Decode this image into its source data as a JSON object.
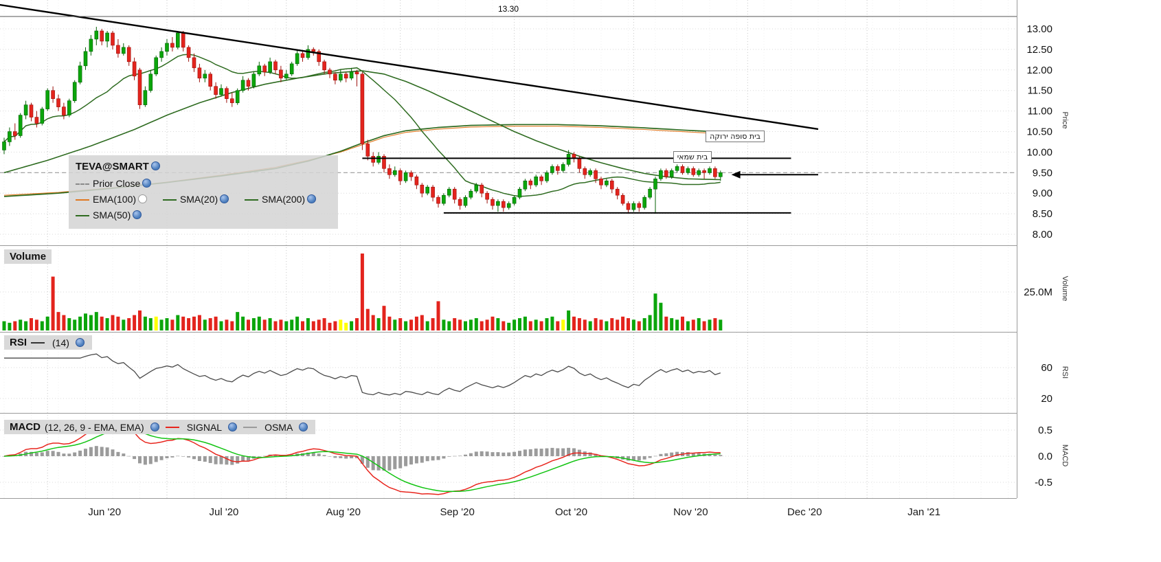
{
  "legend": {
    "symbol": "TEVA@SMART",
    "items": [
      {
        "label": "Prior Close",
        "swatch": "dashed-gray"
      },
      {
        "label": "EMA(100)",
        "swatch": "orange"
      },
      {
        "label": "SMA(20)",
        "swatch": "green"
      },
      {
        "label": "SMA(200)",
        "swatch": "green"
      },
      {
        "label": "SMA(50)",
        "swatch": "green"
      }
    ]
  },
  "panels": {
    "price": {
      "ticks": [
        "13.00",
        "12.50",
        "12.00",
        "11.50",
        "11.00",
        "10.50",
        "10.00",
        "9.50",
        "9.00",
        "8.50",
        "8.00"
      ],
      "axis_title": "Price"
    },
    "volume": {
      "title": "Volume",
      "ticks": [
        "25.0M"
      ],
      "axis_title": "Volume"
    },
    "rsi": {
      "title": "RSI",
      "param": "(14)",
      "ticks": [
        "60",
        "20"
      ],
      "axis_title": "RSI"
    },
    "macd": {
      "title": "MACD",
      "param": "(12, 26, 9 - EMA, EMA)",
      "signal_label": "SIGNAL",
      "osma_label": "OSMA",
      "ticks": [
        "0.5",
        "0.0",
        "-0.5"
      ],
      "axis_title": "MACD"
    }
  },
  "x_axis": {
    "months": [
      {
        "label": "Jun '20",
        "start": 8
      },
      {
        "label": "Jul '20",
        "start": 30
      },
      {
        "label": "Aug '20",
        "start": 52
      },
      {
        "label": "Sep '20",
        "start": 73
      },
      {
        "label": "Oct '20",
        "start": 94
      },
      {
        "label": "Nov '20",
        "start": 116
      },
      {
        "label": "Dec '20",
        "start": 137
      },
      {
        "label": "Jan '21",
        "start": 159
      }
    ]
  },
  "annotations": {
    "top_line": {
      "price": 13.3,
      "label": "13.30"
    },
    "prior_close": 9.5,
    "resistance": {
      "price": 9.85,
      "from_index": 66,
      "to_index": 145
    },
    "support": {
      "price": 8.52,
      "from_index": 81,
      "to_index": 145
    },
    "trendline": {
      "points": [
        [
          -20,
          13.97
        ],
        [
          150,
          10.56
        ]
      ]
    },
    "arrow": {
      "price": 9.45,
      "head_index": 134,
      "tail_index": 150
    },
    "labels": [
      {
        "text": "בית סופה ירוקה",
        "index": 129,
        "price": 10.38
      },
      {
        "text": "בית שמאי",
        "index": 123,
        "price": 9.87
      }
    ]
  },
  "chart_data": {
    "type": "candlestick",
    "symbol": "TEVA@SMART",
    "timeframe": "daily",
    "price_range": [
      8.0,
      13.0
    ],
    "candles": [
      [
        10.05,
        10.35,
        9.95,
        10.25
      ],
      [
        10.25,
        10.6,
        10.15,
        10.5
      ],
      [
        10.5,
        10.7,
        10.3,
        10.4
      ],
      [
        10.4,
        10.95,
        10.35,
        10.9
      ],
      [
        10.9,
        11.25,
        10.8,
        11.15
      ],
      [
        11.15,
        11.2,
        10.75,
        10.85
      ],
      [
        10.85,
        11.0,
        10.6,
        10.7
      ],
      [
        10.7,
        11.1,
        10.65,
        11.05
      ],
      [
        11.05,
        11.55,
        11.0,
        11.5
      ],
      [
        11.5,
        11.6,
        11.2,
        11.3
      ],
      [
        11.3,
        11.4,
        11.0,
        11.1
      ],
      [
        11.1,
        11.2,
        10.8,
        10.9
      ],
      [
        10.9,
        11.3,
        10.85,
        11.25
      ],
      [
        11.25,
        11.75,
        11.2,
        11.7
      ],
      [
        11.7,
        12.2,
        11.65,
        12.1
      ],
      [
        12.1,
        12.55,
        12.0,
        12.45
      ],
      [
        12.45,
        12.85,
        12.35,
        12.75
      ],
      [
        12.75,
        13.05,
        12.6,
        12.95
      ],
      [
        12.95,
        13.0,
        12.6,
        12.7
      ],
      [
        12.7,
        12.95,
        12.55,
        12.9
      ],
      [
        12.9,
        12.95,
        12.5,
        12.6
      ],
      [
        12.6,
        12.75,
        12.3,
        12.4
      ],
      [
        12.4,
        12.65,
        12.35,
        12.55
      ],
      [
        12.55,
        12.6,
        12.1,
        12.2
      ],
      [
        12.2,
        12.3,
        11.75,
        11.85
      ],
      [
        12.0,
        12.05,
        11.05,
        11.15
      ],
      [
        11.15,
        11.6,
        11.1,
        11.5
      ],
      [
        11.5,
        12.0,
        11.45,
        11.9
      ],
      [
        11.9,
        12.35,
        11.85,
        12.3
      ],
      [
        12.3,
        12.55,
        12.2,
        12.45
      ],
      [
        12.45,
        12.75,
        12.35,
        12.65
      ],
      [
        12.65,
        12.8,
        12.45,
        12.55
      ],
      [
        12.55,
        12.95,
        12.5,
        12.9
      ],
      [
        12.9,
        12.95,
        12.45,
        12.55
      ],
      [
        12.55,
        12.6,
        12.2,
        12.3
      ],
      [
        12.3,
        12.4,
        11.95,
        12.05
      ],
      [
        12.05,
        12.15,
        11.7,
        11.8
      ],
      [
        11.8,
        12.0,
        11.7,
        11.9
      ],
      [
        11.9,
        11.95,
        11.5,
        11.6
      ],
      [
        11.6,
        11.7,
        11.3,
        11.4
      ],
      [
        11.4,
        11.65,
        11.35,
        11.55
      ],
      [
        11.55,
        11.6,
        11.2,
        11.3
      ],
      [
        11.3,
        11.45,
        11.1,
        11.2
      ],
      [
        11.2,
        11.55,
        11.15,
        11.5
      ],
      [
        11.5,
        11.85,
        11.45,
        11.75
      ],
      [
        11.75,
        11.8,
        11.5,
        11.6
      ],
      [
        11.6,
        11.95,
        11.55,
        11.9
      ],
      [
        11.9,
        12.2,
        11.85,
        12.1
      ],
      [
        12.1,
        12.15,
        11.85,
        11.95
      ],
      [
        11.95,
        12.3,
        11.9,
        12.2
      ],
      [
        12.2,
        12.25,
        11.9,
        12.0
      ],
      [
        12.0,
        12.1,
        11.7,
        11.8
      ],
      [
        11.8,
        12.0,
        11.75,
        11.9
      ],
      [
        11.9,
        12.2,
        11.85,
        12.15
      ],
      [
        12.15,
        12.5,
        12.1,
        12.4
      ],
      [
        12.4,
        12.45,
        12.2,
        12.3
      ],
      [
        12.3,
        12.6,
        12.25,
        12.5
      ],
      [
        12.5,
        12.55,
        12.35,
        12.45
      ],
      [
        12.45,
        12.5,
        12.1,
        12.2
      ],
      [
        12.2,
        12.25,
        11.9,
        12.0
      ],
      [
        12.0,
        12.05,
        11.8,
        11.9
      ],
      [
        11.9,
        11.95,
        11.65,
        11.75
      ],
      [
        11.75,
        12.0,
        11.7,
        11.9
      ],
      [
        11.9,
        11.95,
        11.7,
        11.8
      ],
      [
        11.8,
        12.05,
        11.75,
        11.95
      ],
      [
        11.95,
        12.0,
        11.6,
        11.9
      ],
      [
        11.9,
        11.95,
        10.05,
        10.2
      ],
      [
        10.2,
        10.3,
        9.8,
        9.9
      ],
      [
        9.9,
        10.0,
        9.65,
        9.75
      ],
      [
        9.75,
        10.0,
        9.7,
        9.9
      ],
      [
        9.9,
        9.95,
        9.5,
        9.6
      ],
      [
        9.6,
        9.7,
        9.35,
        9.45
      ],
      [
        9.45,
        9.65,
        9.4,
        9.55
      ],
      [
        9.55,
        9.6,
        9.2,
        9.3
      ],
      [
        9.3,
        9.55,
        9.25,
        9.5
      ],
      [
        9.5,
        9.55,
        9.3,
        9.4
      ],
      [
        9.4,
        9.45,
        9.1,
        9.2
      ],
      [
        9.2,
        9.25,
        8.9,
        9.0
      ],
      [
        9.0,
        9.2,
        8.95,
        9.15
      ],
      [
        9.15,
        9.2,
        8.8,
        8.9
      ],
      [
        8.9,
        8.95,
        8.65,
        8.75
      ],
      [
        8.75,
        9.0,
        8.7,
        8.95
      ],
      [
        8.95,
        9.15,
        8.9,
        9.1
      ],
      [
        9.1,
        9.15,
        8.75,
        8.85
      ],
      [
        8.85,
        8.9,
        8.6,
        8.7
      ],
      [
        8.7,
        8.95,
        8.65,
        8.9
      ],
      [
        8.9,
        9.1,
        8.85,
        9.05
      ],
      [
        9.05,
        9.25,
        9.0,
        9.2
      ],
      [
        9.2,
        9.25,
        8.9,
        9.0
      ],
      [
        9.0,
        9.05,
        8.75,
        8.85
      ],
      [
        8.85,
        8.9,
        8.6,
        8.7
      ],
      [
        8.7,
        8.85,
        8.55,
        8.8
      ],
      [
        8.8,
        8.85,
        8.55,
        8.65
      ],
      [
        8.65,
        8.8,
        8.6,
        8.75
      ],
      [
        8.75,
        8.95,
        8.7,
        8.9
      ],
      [
        8.9,
        9.15,
        8.85,
        9.1
      ],
      [
        9.1,
        9.35,
        9.05,
        9.3
      ],
      [
        9.3,
        9.35,
        9.1,
        9.2
      ],
      [
        9.2,
        9.45,
        9.15,
        9.4
      ],
      [
        9.4,
        9.45,
        9.2,
        9.3
      ],
      [
        9.3,
        9.55,
        9.25,
        9.5
      ],
      [
        9.5,
        9.7,
        9.45,
        9.65
      ],
      [
        9.65,
        9.7,
        9.45,
        9.55
      ],
      [
        9.55,
        9.75,
        9.5,
        9.7
      ],
      [
        9.7,
        10.05,
        9.65,
        9.95
      ],
      [
        9.95,
        10.0,
        9.75,
        9.85
      ],
      [
        9.85,
        9.9,
        9.5,
        9.6
      ],
      [
        9.6,
        9.65,
        9.35,
        9.45
      ],
      [
        9.45,
        9.6,
        9.4,
        9.55
      ],
      [
        9.55,
        9.6,
        9.25,
        9.35
      ],
      [
        9.35,
        9.4,
        9.1,
        9.2
      ],
      [
        9.2,
        9.35,
        9.15,
        9.3
      ],
      [
        9.3,
        9.35,
        9.0,
        9.1
      ],
      [
        9.1,
        9.15,
        8.85,
        8.95
      ],
      [
        8.95,
        9.0,
        8.7,
        8.75
      ],
      [
        8.75,
        8.8,
        8.5,
        8.6
      ],
      [
        8.6,
        8.8,
        8.55,
        8.75
      ],
      [
        8.75,
        8.8,
        8.55,
        8.65
      ],
      [
        8.65,
        8.95,
        8.6,
        8.9
      ],
      [
        8.9,
        9.15,
        8.85,
        9.1
      ],
      [
        9.1,
        9.4,
        8.5,
        9.35
      ],
      [
        9.35,
        9.6,
        9.3,
        9.55
      ],
      [
        9.55,
        9.6,
        9.35,
        9.4
      ],
      [
        9.4,
        9.6,
        9.35,
        9.55
      ],
      [
        9.55,
        9.7,
        9.5,
        9.65
      ],
      [
        9.65,
        9.7,
        9.45,
        9.5
      ],
      [
        9.5,
        9.65,
        9.45,
        9.6
      ],
      [
        9.6,
        9.65,
        9.4,
        9.45
      ],
      [
        9.45,
        9.6,
        9.4,
        9.55
      ],
      [
        9.55,
        9.6,
        9.35,
        9.5
      ],
      [
        9.5,
        9.65,
        9.45,
        9.6
      ],
      [
        9.6,
        9.65,
        9.35,
        9.4
      ],
      [
        9.4,
        9.55,
        9.3,
        9.5
      ]
    ],
    "volumes": [
      6,
      5,
      6,
      7,
      6,
      8,
      7,
      6,
      9,
      35,
      12,
      10,
      8,
      7,
      9,
      11,
      10,
      12,
      9,
      8,
      10,
      9,
      7,
      8,
      10,
      13,
      9,
      8,
      9,
      7,
      8,
      7,
      10,
      9,
      8,
      9,
      10,
      7,
      8,
      9,
      6,
      7,
      6,
      12,
      9,
      7,
      8,
      9,
      7,
      8,
      6,
      7,
      6,
      7,
      9,
      6,
      8,
      6,
      7,
      8,
      5,
      6,
      7,
      5,
      6,
      8,
      50,
      14,
      10,
      8,
      16,
      9,
      7,
      8,
      6,
      7,
      9,
      10,
      6,
      8,
      19,
      7,
      6,
      8,
      7,
      6,
      7,
      8,
      6,
      7,
      9,
      8,
      6,
      5,
      7,
      8,
      9,
      6,
      7,
      6,
      8,
      9,
      6,
      7,
      13,
      9,
      8,
      7,
      6,
      8,
      7,
      6,
      8,
      7,
      9,
      8,
      7,
      6,
      8,
      10,
      24,
      18,
      9,
      8,
      7,
      9,
      6,
      7,
      8,
      6,
      7,
      8,
      7
    ],
    "volume_unit": "M",
    "volume_yellow_indices": [
      28,
      62,
      63,
      103
    ],
    "overlays": {
      "sma20": {
        "period": 20,
        "computed_from": "candles"
      },
      "sma50": {
        "period": 50,
        "points": [
          [
            0,
            9.5
          ],
          [
            8,
            9.8
          ],
          [
            16,
            10.15
          ],
          [
            24,
            10.55
          ],
          [
            30,
            10.9
          ],
          [
            36,
            11.2
          ],
          [
            42,
            11.45
          ],
          [
            48,
            11.65
          ],
          [
            54,
            11.8
          ],
          [
            60,
            11.92
          ],
          [
            66,
            11.98
          ],
          [
            70,
            11.9
          ],
          [
            74,
            11.72
          ],
          [
            78,
            11.5
          ],
          [
            82,
            11.25
          ],
          [
            86,
            11.0
          ],
          [
            90,
            10.75
          ],
          [
            94,
            10.5
          ],
          [
            98,
            10.28
          ],
          [
            102,
            10.08
          ],
          [
            106,
            9.9
          ],
          [
            110,
            9.74
          ],
          [
            114,
            9.6
          ],
          [
            118,
            9.48
          ],
          [
            122,
            9.4
          ],
          [
            126,
            9.35
          ],
          [
            132,
            9.33
          ]
        ]
      },
      "sma200": {
        "period": 200,
        "points": [
          [
            0,
            8.92
          ],
          [
            10,
            9.0
          ],
          [
            20,
            9.12
          ],
          [
            30,
            9.26
          ],
          [
            40,
            9.42
          ],
          [
            50,
            9.6
          ],
          [
            56,
            9.78
          ],
          [
            62,
            10.02
          ],
          [
            66,
            10.22
          ],
          [
            70,
            10.4
          ],
          [
            74,
            10.52
          ],
          [
            80,
            10.6
          ],
          [
            86,
            10.65
          ],
          [
            94,
            10.67
          ],
          [
            102,
            10.67
          ],
          [
            110,
            10.64
          ],
          [
            118,
            10.59
          ],
          [
            126,
            10.53
          ],
          [
            132,
            10.49
          ]
        ]
      },
      "ema100": {
        "period": 100,
        "points": [
          [
            0,
            8.95
          ],
          [
            10,
            9.02
          ],
          [
            20,
            9.13
          ],
          [
            30,
            9.27
          ],
          [
            40,
            9.44
          ],
          [
            50,
            9.63
          ],
          [
            56,
            9.8
          ],
          [
            62,
            10.0
          ],
          [
            66,
            10.18
          ],
          [
            70,
            10.36
          ],
          [
            74,
            10.48
          ],
          [
            80,
            10.56
          ],
          [
            86,
            10.61
          ],
          [
            94,
            10.63
          ],
          [
            102,
            10.63
          ],
          [
            110,
            10.6
          ],
          [
            118,
            10.55
          ],
          [
            126,
            10.49
          ],
          [
            132,
            10.45
          ]
        ]
      }
    },
    "indicators": {
      "rsi": {
        "period": 14
      },
      "macd": {
        "fast": 12,
        "slow": 26,
        "signal": 9
      }
    },
    "colors": {
      "up": "#0ba50b",
      "up_stroke": "#056105",
      "down": "#e3241d",
      "down_stroke": "#9c120d",
      "yellow": "#ffff00",
      "sma": "#2e6b20",
      "ema": "#e07820",
      "macd_line": "#e8251d",
      "signal_line": "#12c412",
      "osma": "#9b9b9b",
      "prior_close": "#9a9a9a",
      "annotation": "#000000",
      "rsi_line": "#4a4a4a"
    }
  }
}
